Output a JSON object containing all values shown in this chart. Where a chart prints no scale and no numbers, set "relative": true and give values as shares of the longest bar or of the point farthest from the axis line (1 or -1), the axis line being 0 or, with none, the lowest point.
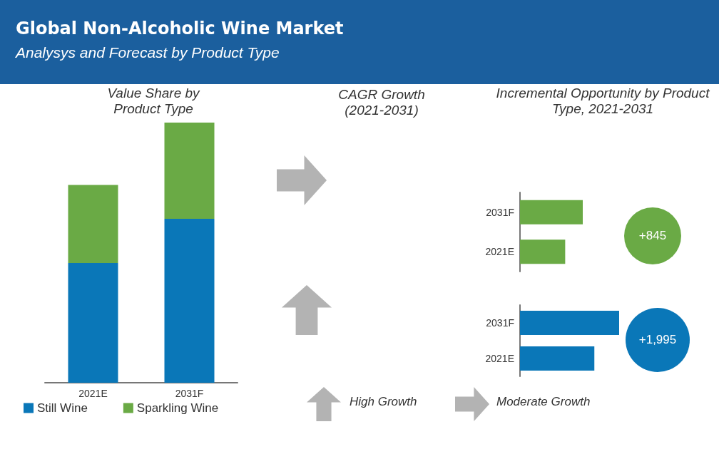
{
  "chart_data": [
    {
      "type": "other",
      "title": "Global Non-Alcoholic Wine Market",
      "subtitle": "Analysys and Forecast by Product Type"
    },
    {
      "type": "bar",
      "title": "Value Share by Product Type",
      "categories": [
        "2021E",
        "2031F"
      ],
      "stacked": true,
      "relative": true,
      "legend": "bottom left",
      "series": [
        {
          "name": "Still Wine",
          "color": "#0a77b8",
          "values": [
            0.46,
            0.63
          ]
        },
        {
          "name": "Sparkling Wine",
          "color": "#6aaa45",
          "values": [
            0.3,
            0.37
          ]
        }
      ]
    },
    {
      "type": "other",
      "title": "CAGR Growth (2021-2031)",
      "annotations": [
        "High Growth",
        "Moderate Growth"
      ]
    },
    {
      "type": "bar",
      "orientation": "horizontal",
      "relative": true,
      "title": "Incremental Opportunity by Product Type, 2021-2031",
      "categories": [
        "2031F",
        "2021E"
      ],
      "values": [
        1,
        0.72
      ],
      "colors": [
        "#6aaa45",
        "#6aaa45"
      ],
      "annotations": [
        "+845"
      ]
    },
    {
      "type": "bar",
      "orientation": "horizontal",
      "relative": true,
      "categories": [
        "2031F",
        "2021E"
      ],
      "values": [
        1,
        0.75
      ],
      "colors": [
        "#0a77b8",
        "#0a77b8"
      ],
      "annotations": [
        "+1,995"
      ]
    }
  ]
}
